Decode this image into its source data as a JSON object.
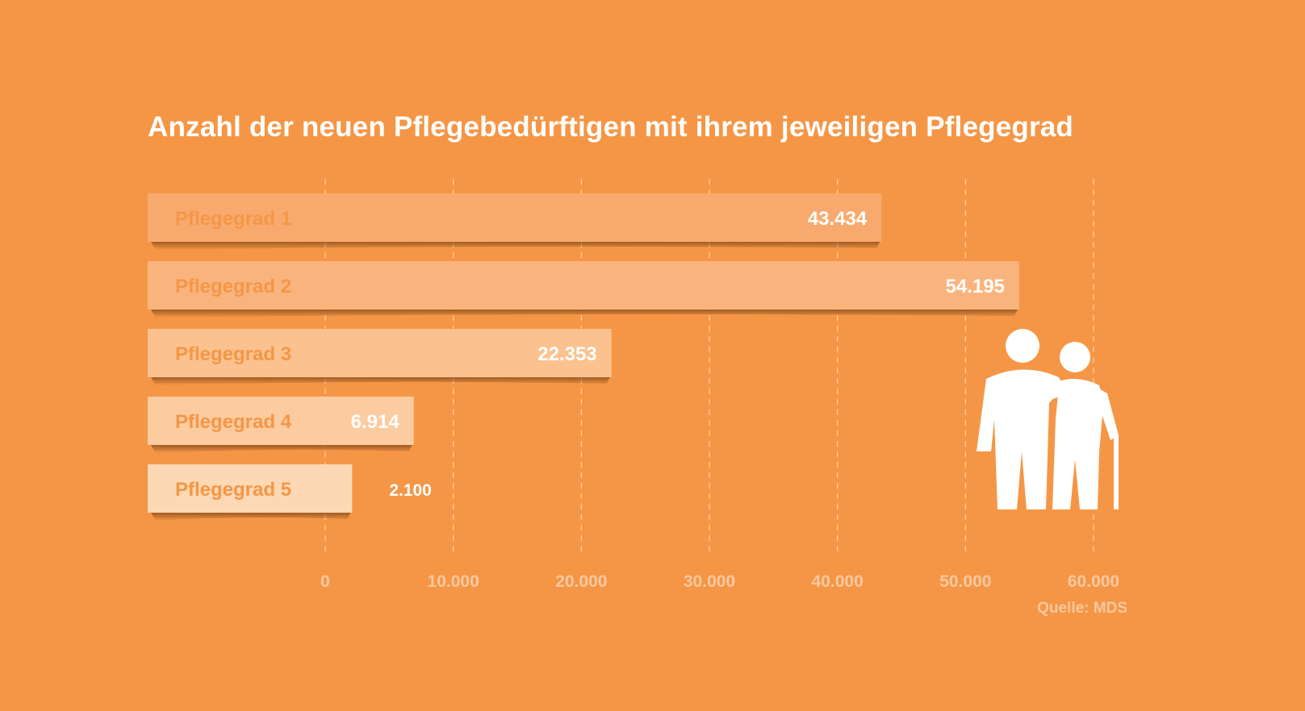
{
  "title": "Anzahl der neuen Pflegebedürftigen mit ihrem jeweiligen Pflegegrad",
  "source": "Quelle: MDS",
  "colors": {
    "background": "#f59646",
    "label_text": "#f59646",
    "value_text": "#ffffff",
    "tick_text": "#f8c8a0",
    "grid": "#fbd3ad",
    "icon": "#ffffff"
  },
  "icon": "elderly-couple-icon",
  "chart_data": {
    "type": "bar",
    "orientation": "horizontal",
    "title": "Anzahl der neuen Pflegebedürftigen mit ihrem jeweiligen Pflegegrad",
    "categories": [
      "Pflegegrad 1",
      "Pflegegrad 2",
      "Pflegegrad 3",
      "Pflegegrad 4",
      "Pflegegrad 5"
    ],
    "values": [
      43434,
      54195,
      22353,
      6914,
      2100
    ],
    "value_labels": [
      "43.434",
      "54.195",
      "22.353",
      "6.914",
      "2.100"
    ],
    "bar_colors": [
      "#f8aa6e",
      "#f9b47e",
      "#fbc28f",
      "#fccba0",
      "#fdd8b4"
    ],
    "xlim": [
      0,
      60000
    ],
    "xticks": [
      0,
      10000,
      20000,
      30000,
      40000,
      50000,
      60000
    ],
    "xtick_labels": [
      "0",
      "10.000",
      "20.000",
      "30.000",
      "40.000",
      "50.000",
      "60.000"
    ],
    "grid": true,
    "legend": "none"
  }
}
